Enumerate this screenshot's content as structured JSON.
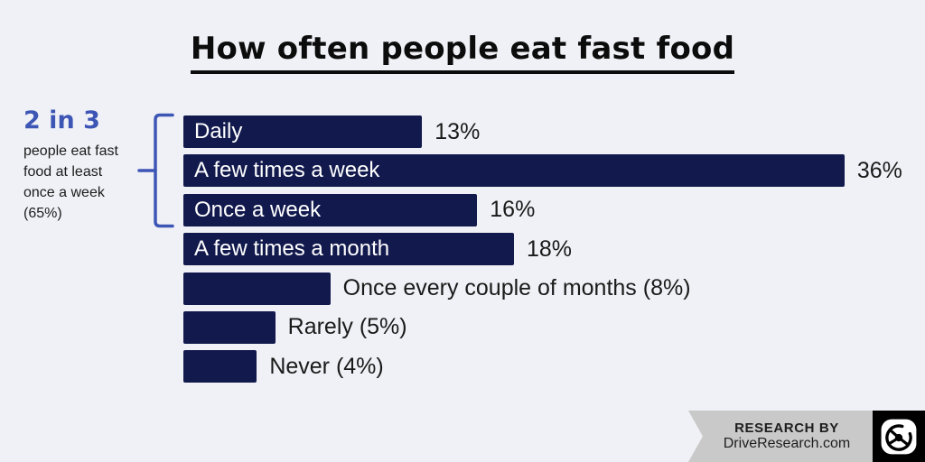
{
  "title": "How often people eat fast food",
  "annotation": {
    "headline": "2 in 3",
    "body": "people eat fast food at least once a week (65%)"
  },
  "chart_data": {
    "type": "bar",
    "orientation": "horizontal",
    "title": "How often people eat fast food",
    "unit": "%",
    "xlim": [
      0,
      36
    ],
    "grid": false,
    "legend": false,
    "categories": [
      "Daily",
      "A few times a week",
      "Once a week",
      "A few times a month",
      "Once every couple of months",
      "Rarely",
      "Never"
    ],
    "values": [
      13,
      36,
      16,
      18,
      8,
      5,
      4
    ],
    "rows": [
      {
        "category": "Daily",
        "value": 13,
        "display": "13%",
        "category_position": "inside-bar"
      },
      {
        "category": "A few times a week",
        "value": 36,
        "display": "36%",
        "category_position": "inside-bar"
      },
      {
        "category": "Once a week",
        "value": 16,
        "display": "16%",
        "category_position": "inside-bar"
      },
      {
        "category": "A few times a month",
        "value": 18,
        "display": "18%",
        "category_position": "inside-bar"
      },
      {
        "category": "Once every couple of months",
        "value": 8,
        "display": "Once every couple of months (8%)",
        "category_position": "outside-bar"
      },
      {
        "category": "Rarely",
        "value": 5,
        "display": "Rarely (5%)",
        "category_position": "outside-bar"
      },
      {
        "category": "Never",
        "value": 4,
        "display": "Never (4%)",
        "category_position": "outside-bar"
      }
    ],
    "annotation_bracket": {
      "covers_rows": [
        "Daily",
        "A few times a week",
        "Once a week"
      ],
      "label": "2 in 3 people eat fast food at least once a week (65%)"
    }
  },
  "footer": {
    "line1": "RESEARCH BY",
    "line2": "DriveResearch.com",
    "logo": "steering-wheel-icon"
  },
  "colors": {
    "background": "#f0f1f6",
    "bar": "#121a4d",
    "accent_blue": "#3d56b5",
    "title_text": "#0c0c0c",
    "label_text": "#1a1a1a",
    "bar_label_text": "#ffffff",
    "ribbon_gray": "#c9c9c9",
    "logo_black": "#000000"
  }
}
